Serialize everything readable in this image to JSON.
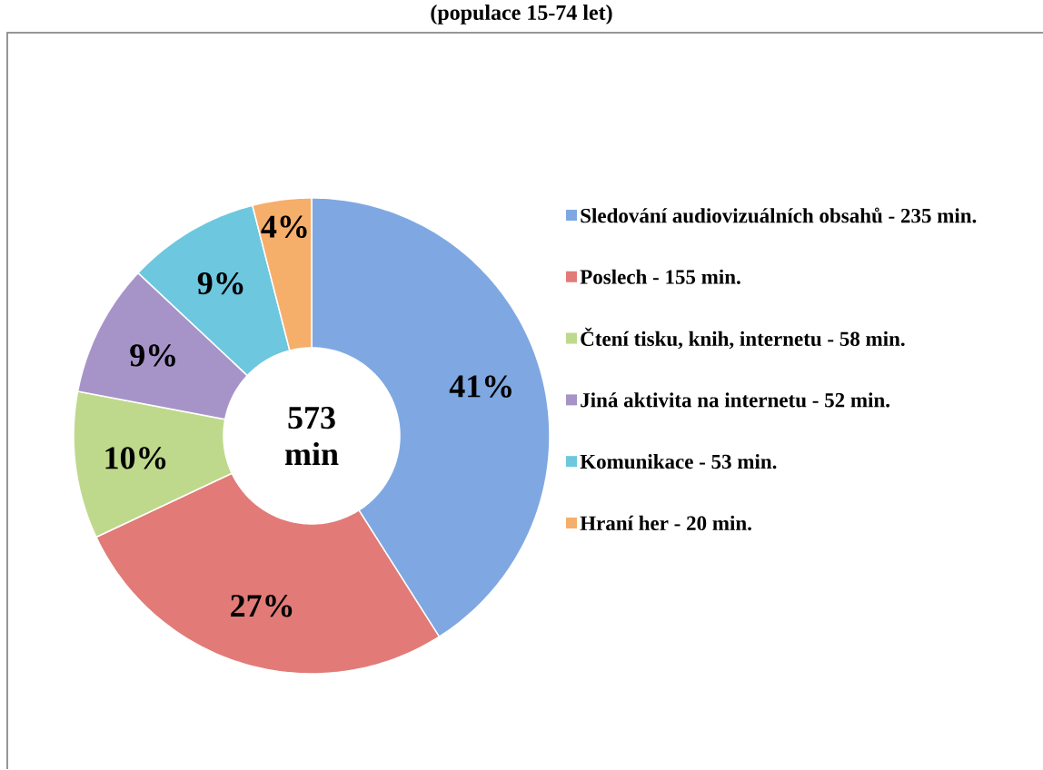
{
  "chart_data": {
    "type": "donut",
    "title": "(populace 15-74 let)",
    "categories": [
      "Sledování audiovizuálních obsahů - 235 min.",
      "Poslech - 155 min.",
      "Čtení tisku, knih, internetu - 58 min.",
      "Jiná aktivita na internetu - 52 min.",
      "Komunikace - 53 min.",
      "Hraní her - 20 min."
    ],
    "values": [
      41,
      27,
      10,
      9,
      9,
      4
    ],
    "value_labels": [
      "41%",
      "27%",
      "10%",
      "9%",
      "9%",
      "4%"
    ],
    "colors": [
      "#7fa8e2",
      "#e27b77",
      "#bfd98c",
      "#a694c8",
      "#6dc7de",
      "#f6ae6b"
    ],
    "annotations": [
      "573 min"
    ],
    "legend": "right"
  }
}
